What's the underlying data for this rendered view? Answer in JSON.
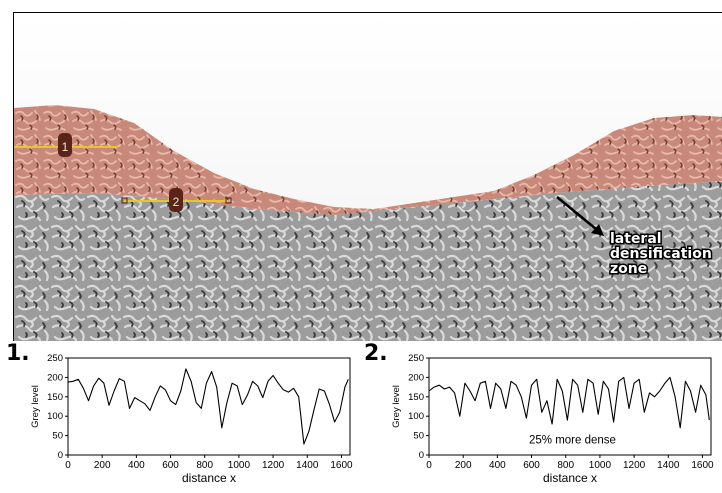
{
  "image": {
    "annotation": {
      "text_line1": "lateral",
      "text_line2": "densification",
      "text_line3": "zone"
    },
    "markers": [
      {
        "label": "1"
      },
      {
        "label": "2"
      }
    ],
    "colors": {
      "overlay": "#c8897a",
      "profile_line": "#e8c62a",
      "marker_fill": "#5a2418",
      "micro_dark": "#3a3a3a",
      "micro_light": "#d8d8d8"
    }
  },
  "panel_labels": [
    "1.",
    "2."
  ],
  "chart_data": [
    {
      "type": "line",
      "panel": "1.",
      "xlabel": "distance x",
      "ylabel": "Grey level",
      "xlim": [
        0,
        1650
      ],
      "ylim": [
        0,
        250
      ],
      "xticks": [
        "0",
        "200",
        "400",
        "600",
        "800",
        "1000",
        "1200",
        "1400",
        "1600"
      ],
      "yticks": [
        "0",
        "50",
        "100",
        "150",
        "200",
        "250"
      ],
      "annotation": "",
      "series": [
        {
          "x": [
            0,
            30,
            60,
            90,
            120,
            150,
            180,
            210,
            240,
            270,
            300,
            330,
            360,
            390,
            420,
            450,
            480,
            510,
            540,
            570,
            600,
            630,
            660,
            690,
            720,
            750,
            780,
            810,
            840,
            870,
            900,
            930,
            960,
            990,
            1020,
            1050,
            1080,
            1110,
            1140,
            1170,
            1200,
            1230,
            1260,
            1290,
            1320,
            1350,
            1380,
            1410,
            1440,
            1470,
            1500,
            1530,
            1560,
            1590,
            1620,
            1640
          ],
          "y": [
            188,
            190,
            195,
            172,
            140,
            178,
            198,
            185,
            128,
            165,
            197,
            190,
            120,
            148,
            140,
            132,
            115,
            150,
            178,
            168,
            140,
            130,
            165,
            222,
            190,
            135,
            120,
            185,
            215,
            175,
            70,
            135,
            185,
            178,
            130,
            155,
            190,
            178,
            148,
            190,
            205,
            185,
            168,
            162,
            172,
            150,
            28,
            62,
            118,
            170,
            165,
            130,
            85,
            110,
            175,
            195
          ]
        }
      ]
    },
    {
      "type": "line",
      "panel": "2.",
      "xlabel": "distance x",
      "ylabel": "Grey level",
      "xlim": [
        0,
        1650
      ],
      "ylim": [
        0,
        250
      ],
      "xticks": [
        "0",
        "200",
        "400",
        "600",
        "800",
        "1000",
        "1200",
        "1400",
        "1600"
      ],
      "yticks": [
        "0",
        "50",
        "100",
        "150",
        "200",
        "250"
      ],
      "annotation": "25% more dense",
      "series": [
        {
          "x": [
            0,
            30,
            60,
            90,
            120,
            150,
            180,
            210,
            240,
            270,
            300,
            330,
            360,
            390,
            420,
            450,
            480,
            510,
            540,
            570,
            600,
            630,
            660,
            690,
            720,
            750,
            780,
            810,
            840,
            870,
            900,
            930,
            960,
            990,
            1020,
            1050,
            1080,
            1110,
            1140,
            1170,
            1200,
            1230,
            1260,
            1290,
            1320,
            1350,
            1380,
            1410,
            1440,
            1470,
            1500,
            1530,
            1560,
            1590,
            1620,
            1640
          ],
          "y": [
            165,
            175,
            180,
            170,
            175,
            160,
            100,
            185,
            165,
            140,
            185,
            190,
            120,
            185,
            170,
            120,
            190,
            180,
            150,
            95,
            180,
            195,
            110,
            140,
            80,
            195,
            165,
            90,
            195,
            180,
            110,
            195,
            185,
            105,
            190,
            170,
            85,
            190,
            200,
            120,
            185,
            195,
            110,
            160,
            150,
            165,
            185,
            200,
            150,
            70,
            190,
            165,
            110,
            180,
            155,
            90
          ]
        }
      ]
    }
  ]
}
